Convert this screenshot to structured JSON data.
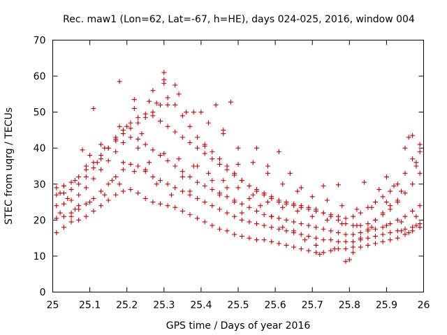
{
  "chart_data": {
    "type": "scatter",
    "title": "Rec. maw1 (Lon=62, Lat=-67, h=HE), days 024-025, 2016, window 004",
    "xlabel": "GPS time / Days of year 2016",
    "ylabel": "STEC from uqrg / TECUs",
    "xlim": [
      25,
      26
    ],
    "ylim": [
      0,
      70
    ],
    "xticks": [
      25,
      25.1,
      25.2,
      25.3,
      25.4,
      25.5,
      25.6,
      25.7,
      25.8,
      25.9,
      26
    ],
    "xtick_labels": [
      "25",
      "25.1",
      "25.2",
      "25.3",
      "25.4",
      "25.5",
      "25.6",
      "25.7",
      "25.8",
      "25.9",
      "26"
    ],
    "yticks": [
      0,
      10,
      20,
      30,
      40,
      50,
      60,
      70
    ],
    "ytick_labels": [
      "0",
      "10",
      "20",
      "30",
      "40",
      "50",
      "60",
      "70"
    ],
    "grid": false,
    "legend": "none",
    "marker": "plus",
    "color": "#cc0000",
    "series": [
      {
        "tracks": [
          {
            "x": [
              25.01,
              25.03,
              25.05,
              25.07,
              25.09,
              25.11,
              25.13,
              25.15,
              25.17,
              25.19,
              25.21,
              25.23,
              25.25,
              25.27,
              25.29,
              25.31,
              25.33,
              25.35,
              25.37,
              25.39,
              25.41,
              25.43,
              25.45,
              25.47,
              25.49,
              25.51,
              25.53,
              25.55,
              25.57,
              25.59,
              25.61,
              25.63,
              25.65,
              25.67,
              25.69,
              25.71,
              25.73,
              25.75,
              25.77,
              25.79,
              25.81,
              25.83,
              25.85,
              25.87,
              25.89,
              25.91,
              25.93,
              25.95,
              25.97,
              25.99
            ],
            "y": [
              16.5,
              18,
              19.5,
              20,
              21,
              22.5,
              24,
              25.5,
              27,
              28,
              28.5,
              27.5,
              26,
              25,
              24.5,
              24,
              23.5,
              22.5,
              21.5,
              20.5,
              19.5,
              18.5,
              17.5,
              17,
              16,
              15.5,
              15,
              14.5,
              14.5,
              14,
              13.5,
              13,
              12.5,
              12,
              11.5,
              11,
              11,
              11.5,
              12,
              12,
              12.5,
              12.5,
              13,
              13.5,
              14,
              14.5,
              15,
              16,
              17,
              18
            ]
          },
          {
            "x": [
              25.01,
              25.03,
              25.05,
              25.07,
              25.09,
              25.11,
              25.13,
              25.15,
              25.17,
              25.19,
              25.21,
              25.23,
              25.25,
              25.27,
              25.29,
              25.31,
              25.33,
              25.35,
              25.37,
              25.39,
              25.41,
              25.43,
              25.45,
              25.47,
              25.49,
              25.51,
              25.53,
              25.55,
              25.57,
              25.59,
              25.61,
              25.63,
              25.65,
              25.67,
              25.69,
              25.71,
              25.73,
              25.75,
              25.77,
              25.79,
              25.81,
              25.83,
              25.85,
              25.87,
              25.89,
              25.91,
              25.93,
              25.95,
              25.97,
              25.99
            ],
            "y": [
              20.5,
              21,
              22,
              23,
              24.5,
              26,
              28,
              30,
              32,
              34,
              35.5,
              35,
              33.5,
              32,
              31,
              30,
              29,
              28,
              27,
              26,
              25,
              24,
              23,
              22,
              21,
              20,
              19.5,
              19,
              18.5,
              18,
              17.5,
              17,
              16.5,
              16,
              15.5,
              15,
              14.5,
              14.5,
              14,
              14,
              14,
              14.5,
              15,
              15.5,
              16,
              16.5,
              17,
              17.5,
              18,
              19
            ]
          },
          {
            "x": [
              25.01,
              25.03,
              25.05,
              25.07,
              25.09,
              25.11,
              25.13,
              25.15,
              25.17,
              25.19,
              25.21,
              25.23,
              25.25,
              25.27,
              25.29,
              25.31,
              25.33,
              25.35,
              25.37,
              25.39,
              25.41,
              25.43,
              25.45,
              25.47,
              25.49,
              25.51,
              25.53,
              25.55,
              25.57,
              25.59,
              25.61,
              25.63,
              25.65,
              25.67,
              25.69,
              25.71,
              25.73,
              25.75,
              25.77,
              25.79,
              25.81,
              25.83,
              25.85,
              25.87,
              25.89,
              25.91,
              25.93,
              25.95,
              25.97,
              25.99
            ],
            "y": [
              24,
              24.5,
              25.5,
              27,
              29,
              31.5,
              34,
              36.5,
              39,
              41.5,
              43,
              42.5,
              41,
              39.5,
              38,
              36.5,
              35,
              33.5,
              32,
              30.5,
              29.5,
              28.5,
              27.5,
              26.5,
              25.5,
              24.5,
              23.5,
              22.5,
              21.5,
              21,
              20.5,
              20,
              19.5,
              19,
              18.5,
              18,
              17.5,
              17,
              16.5,
              16,
              16,
              16.5,
              17,
              17.5,
              18,
              19,
              20,
              21,
              22.5,
              24
            ]
          },
          {
            "x": [
              25.01,
              25.03,
              25.05,
              25.07,
              25.09,
              25.11,
              25.13,
              25.15,
              25.17,
              25.19,
              25.21,
              25.23,
              25.25,
              25.27,
              25.29,
              25.31,
              25.33,
              25.35,
              25.37,
              25.39,
              25.41,
              25.43,
              25.45,
              25.47,
              25.49,
              25.51,
              25.53,
              25.55,
              25.57,
              25.59,
              25.61,
              25.63,
              25.65,
              25.67,
              25.69,
              25.71,
              25.73,
              25.75,
              25.77,
              25.79,
              25.81,
              25.83,
              25.85,
              25.87,
              25.89,
              25.91,
              25.93,
              25.95,
              25.97,
              25.99
            ],
            "y": [
              27,
              27.5,
              28.5,
              30,
              32,
              34.5,
              37,
              40,
              42.5,
              45,
              47,
              48.5,
              49.5,
              49,
              47.5,
              46,
              44.5,
              43,
              41.5,
              40,
              38.5,
              37,
              35.5,
              34,
              32.5,
              31,
              29.5,
              28.5,
              27.5,
              26.5,
              25.5,
              25,
              24.5,
              24,
              23.5,
              23,
              22,
              21,
              20,
              19,
              18.5,
              18.5,
              19,
              20,
              21.5,
              23,
              25,
              27.5,
              30,
              33
            ]
          },
          {
            "x": [
              25.01,
              25.03,
              25.05,
              25.07,
              25.09,
              25.11,
              25.13,
              25.15,
              25.17,
              25.19,
              25.21,
              25.23,
              25.25,
              25.27,
              25.29,
              25.31,
              25.33,
              25.35,
              25.37,
              25.39,
              25.41,
              25.43,
              25.45,
              25.47,
              25.49,
              25.51,
              25.53,
              25.55,
              25.57,
              25.59,
              25.61,
              25.63,
              25.65,
              25.67,
              25.69,
              25.71,
              25.73,
              25.75,
              25.77,
              25.79,
              25.81,
              25.83,
              25.85,
              25.87,
              25.89,
              25.91,
              25.93,
              25.95,
              25.97,
              25.99
            ],
            "y": [
              29,
              29.5,
              30.5,
              32,
              34,
              36,
              38,
              40,
              42,
              44,
              45.5,
              47,
              48.5,
              50,
              52,
              54,
              52,
              49,
              46,
              43,
              41,
              39,
              37,
              35,
              33,
              31,
              29.5,
              28,
              27,
              26,
              25,
              24.5,
              24,
              23.5,
              23,
              22.5,
              22,
              21.5,
              21,
              20.5,
              21,
              22,
              23.5,
              25,
              26.5,
              28,
              30,
              33,
              37,
              41
            ]
          },
          {
            "x": [
              25.1,
              25.14,
              25.18,
              25.22,
              25.26,
              25.3,
              25.34,
              25.38,
              25.42,
              25.46,
              25.5,
              25.54,
              25.58,
              25.62,
              25.66,
              25.7,
              25.74,
              25.78,
              25.82,
              25.86,
              25.9,
              25.94,
              25.98
            ],
            "y": [
              38,
              40,
              46,
              51,
              53,
              58,
              55,
              50,
              47,
              44,
              40,
              36,
              33,
              30,
              28,
              26.5,
              25.5,
              24,
              23,
              23.5,
              25,
              28,
              35
            ]
          },
          {
            "x": [
              25.02,
              25.06,
              25.1,
              25.14,
              25.18,
              25.22,
              25.26,
              25.3,
              25.34,
              25.38,
              25.42,
              25.46,
              25.5,
              25.54,
              25.58,
              25.62,
              25.66,
              25.7,
              25.74,
              25.78,
              25.82,
              25.86,
              25.9,
              25.94,
              25.98
            ],
            "y": [
              22,
              23,
              25,
              27,
              30,
              33.5,
              36,
              38.5,
              37,
              35,
              33,
              31,
              29,
              27,
              25,
              23.5,
              22.5,
              21,
              20,
              19,
              18.5,
              18,
              18.5,
              19.5,
              21
            ]
          }
        ],
        "scatter": [
          [
            25.18,
            58.5
          ],
          [
            25.27,
            56
          ],
          [
            25.3,
            61
          ],
          [
            25.3,
            59
          ],
          [
            25.33,
            57.5
          ],
          [
            25.11,
            51
          ],
          [
            25.22,
            53.5
          ],
          [
            25.28,
            52.5
          ],
          [
            25.31,
            52
          ],
          [
            25.36,
            50
          ],
          [
            25.4,
            50
          ],
          [
            25.44,
            52
          ],
          [
            25.48,
            52.8
          ],
          [
            25.46,
            45
          ],
          [
            25.2,
            46
          ],
          [
            25.24,
            44
          ],
          [
            25.08,
            39.5
          ],
          [
            25.13,
            41
          ],
          [
            25.17,
            43
          ],
          [
            25.41,
            40.5
          ],
          [
            25.55,
            40
          ],
          [
            25.61,
            39
          ],
          [
            25.5,
            35.5
          ],
          [
            25.58,
            35
          ],
          [
            25.64,
            33
          ],
          [
            25.67,
            29
          ],
          [
            25.73,
            29.5
          ],
          [
            25.77,
            29.8
          ],
          [
            25.84,
            30.5
          ],
          [
            25.88,
            28.5
          ],
          [
            25.92,
            29.5
          ],
          [
            25.96,
            43
          ],
          [
            25.97,
            43.5
          ],
          [
            25.95,
            40
          ],
          [
            25.99,
            39
          ],
          [
            25.98,
            36
          ],
          [
            25.03,
            29.5
          ],
          [
            25.06,
            31
          ],
          [
            25.09,
            35
          ],
          [
            25.12,
            36
          ],
          [
            25.07,
            24
          ],
          [
            25.05,
            21
          ],
          [
            25.04,
            26
          ],
          [
            25.02,
            27.5
          ],
          [
            25.16,
            31
          ],
          [
            25.19,
            36
          ],
          [
            25.23,
            40
          ],
          [
            25.25,
            34
          ],
          [
            25.28,
            30
          ],
          [
            25.32,
            27
          ],
          [
            25.35,
            32
          ],
          [
            25.37,
            28
          ],
          [
            25.39,
            35
          ],
          [
            25.43,
            31
          ],
          [
            25.45,
            27
          ],
          [
            25.47,
            29
          ],
          [
            25.49,
            25
          ],
          [
            25.51,
            22
          ],
          [
            25.53,
            26
          ],
          [
            25.56,
            24
          ],
          [
            25.59,
            21
          ],
          [
            25.62,
            18
          ],
          [
            25.65,
            17
          ],
          [
            25.68,
            14.5
          ],
          [
            25.71,
            13
          ],
          [
            25.72,
            10.5
          ],
          [
            25.76,
            12
          ],
          [
            25.79,
            8.5
          ],
          [
            25.8,
            9
          ],
          [
            25.81,
            11
          ],
          [
            25.83,
            15
          ],
          [
            25.85,
            17.5
          ],
          [
            25.87,
            20
          ],
          [
            25.89,
            22
          ],
          [
            25.91,
            24
          ],
          [
            25.93,
            25.5
          ],
          [
            25.94,
            17
          ],
          [
            25.96,
            16.5
          ],
          [
            25.98,
            18.5
          ],
          [
            25.9,
            32
          ]
        ]
      }
    ]
  }
}
